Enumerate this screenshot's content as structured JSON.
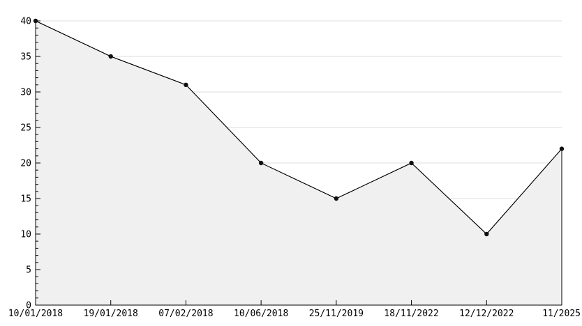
{
  "chart_data": {
    "type": "area",
    "title": "",
    "xlabel": "",
    "ylabel": "",
    "categories": [
      "10/01/2018",
      "19/01/2018",
      "07/02/2018",
      "10/06/2018",
      "25/11/2019",
      "18/11/2022",
      "12/12/2022",
      "11/2025"
    ],
    "values": [
      40,
      35,
      31,
      20,
      15,
      20,
      10,
      22
    ],
    "ylim": [
      0,
      40
    ],
    "y_major_step": 5,
    "y_minor_step": 1,
    "y_tick_labels": [
      "0",
      "5",
      "10",
      "15",
      "20",
      "25",
      "30",
      "35",
      "40"
    ],
    "grid": "horizontal-major",
    "legend_position": "none",
    "colors": {
      "line": "#000000",
      "marker": "#111111",
      "area_fill": "#f0f0f0",
      "gridline": "#dddddd",
      "axis": "#000000",
      "background": "#ffffff",
      "label_text": "#000000"
    }
  }
}
